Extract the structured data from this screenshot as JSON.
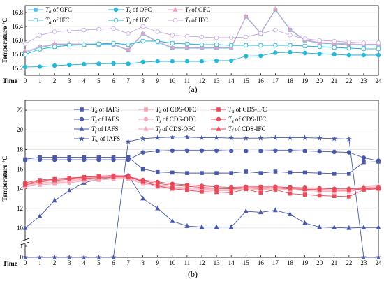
{
  "figure": {
    "panels": [
      {
        "id": "a",
        "label": "(a)",
        "type": "line",
        "xlabel": "Time",
        "ylabel": "Temperature ºC",
        "x": [
          0,
          1,
          2,
          3,
          4,
          5,
          6,
          7,
          8,
          9,
          10,
          11,
          12,
          13,
          14,
          15,
          16,
          17,
          18,
          19,
          20,
          21,
          22,
          23,
          24
        ],
        "xlim": [
          0,
          24
        ],
        "ylim": [
          15.0,
          17.0
        ],
        "yticks": [
          15.2,
          15.6,
          16.0,
          16.4,
          16.8
        ],
        "series": [
          {
            "key": "ta_ofc",
            "name_sub": "a",
            "name_suffix": " of OFC",
            "marker": "square",
            "fill": true,
            "color": "#5bc0eb",
            "values": [
              15.65,
              15.8,
              15.88,
              15.88,
              15.88,
              15.88,
              15.88,
              15.72,
              16.18,
              15.95,
              15.78,
              15.78,
              15.78,
              15.78,
              15.78,
              16.68,
              16.2,
              16.88,
              16.3,
              16.0,
              15.92,
              15.9,
              15.88,
              15.87,
              15.87
            ]
          },
          {
            "key": "ts_ofc",
            "name_sub": "s",
            "name_suffix": " of OFC",
            "marker": "circle",
            "fill": true,
            "color": "#2bb8d4",
            "values": [
              15.24,
              15.25,
              15.28,
              15.3,
              15.32,
              15.33,
              15.34,
              15.33,
              15.38,
              15.4,
              15.4,
              15.4,
              15.4,
              15.42,
              15.42,
              15.55,
              15.56,
              15.65,
              15.66,
              15.64,
              15.62,
              15.6,
              15.58,
              15.58,
              15.58
            ]
          },
          {
            "key": "tf_ofc",
            "name_sub": "f",
            "name_suffix": " of OFC",
            "marker": "triangle",
            "fill": true,
            "color": "#e8a0c0",
            "values": [
              15.68,
              15.82,
              15.9,
              15.9,
              15.9,
              15.9,
              15.9,
              15.74,
              16.2,
              15.97,
              15.8,
              15.8,
              15.8,
              15.8,
              15.8,
              16.7,
              16.22,
              16.9,
              16.32,
              16.02,
              15.94,
              15.92,
              15.9,
              15.89,
              15.89
            ]
          },
          {
            "key": "ta_ifc",
            "name_sub": "a",
            "name_suffix": " of IFC",
            "marker": "square",
            "fill": false,
            "color": "#5bc0eb",
            "values": [
              15.6,
              15.75,
              15.82,
              15.86,
              15.88,
              15.9,
              15.92,
              15.88,
              15.98,
              15.98,
              15.92,
              15.9,
              15.88,
              15.88,
              15.86,
              15.86,
              15.86,
              15.86,
              15.86,
              15.84,
              15.82,
              15.8,
              15.78,
              15.76,
              15.76
            ]
          },
          {
            "key": "ts_ifc",
            "name_sub": "s",
            "name_suffix": " of IFC",
            "marker": "circle",
            "fill": false,
            "color": "#2bb8d4",
            "values": [
              15.6,
              15.75,
              15.82,
              15.86,
              15.88,
              15.9,
              15.92,
              15.88,
              15.98,
              15.98,
              15.92,
              15.9,
              15.88,
              15.88,
              15.86,
              15.86,
              15.86,
              15.86,
              15.86,
              15.84,
              15.82,
              15.8,
              15.78,
              15.76,
              15.76
            ]
          },
          {
            "key": "tf_ifc",
            "name_sub": "f",
            "name_suffix": " of IFC",
            "marker": "circle",
            "fill": false,
            "color": "#c8a8e0",
            "values": [
              15.9,
              16.15,
              16.25,
              16.28,
              16.3,
              16.32,
              16.34,
              16.2,
              16.4,
              16.25,
              16.15,
              16.12,
              16.1,
              16.08,
              16.08,
              16.1,
              16.2,
              16.3,
              16.15,
              16.05,
              16.0,
              15.98,
              15.95,
              15.93,
              15.93
            ]
          }
        ]
      },
      {
        "id": "b",
        "label": "(b)",
        "type": "line",
        "xlabel": "Time",
        "ylabel": "Temperature ºC",
        "x": [
          0,
          1,
          2,
          3,
          4,
          5,
          6,
          7,
          8,
          9,
          10,
          11,
          12,
          13,
          14,
          15,
          16,
          17,
          18,
          19,
          20,
          21,
          22,
          23,
          24
        ],
        "xlim": [
          0,
          24
        ],
        "ylim": [
          0,
          23
        ],
        "axis_break": [
          1,
          9
        ],
        "yticks": [
          0,
          1,
          10,
          12,
          14,
          16,
          18,
          20,
          22
        ],
        "series": [
          {
            "key": "ta_iafs",
            "name_sub": "a",
            "name_suffix": " of IAFS",
            "marker": "square",
            "fill": true,
            "color": "#4a5aa8",
            "values": [
              17.0,
              17.2,
              17.2,
              17.2,
              17.2,
              17.2,
              17.2,
              17.2,
              16.0,
              15.7,
              15.65,
              15.6,
              15.6,
              15.6,
              15.6,
              15.75,
              15.6,
              15.75,
              15.65,
              15.65,
              15.6,
              15.55,
              15.55,
              16.7,
              16.75
            ]
          },
          {
            "key": "ts_iafs",
            "name_sub": "s",
            "name_suffix": " of IAFS",
            "marker": "circle",
            "fill": true,
            "color": "#4a5aa8",
            "values": [
              16.9,
              16.95,
              16.95,
              16.95,
              16.95,
              16.95,
              16.95,
              16.95,
              17.7,
              17.85,
              17.9,
              17.9,
              17.9,
              17.9,
              17.85,
              17.85,
              17.85,
              17.9,
              17.9,
              17.85,
              17.8,
              17.75,
              17.7,
              17.15,
              16.85
            ]
          },
          {
            "key": "tf_iafs",
            "name_sub": "f",
            "name_suffix": " of IAFS",
            "marker": "triangle",
            "fill": true,
            "color": "#4a5aa8",
            "values": [
              10.0,
              11.2,
              12.8,
              13.8,
              14.6,
              15.0,
              15.2,
              15.4,
              13.0,
              12.0,
              10.7,
              10.2,
              10.1,
              10.1,
              10.1,
              11.7,
              11.6,
              11.8,
              11.4,
              10.5,
              10.1,
              10.05,
              10.0,
              10.05,
              10.05
            ]
          },
          {
            "key": "tw_iafs",
            "name_sub": "w",
            "name_suffix": " of IAFS",
            "marker": "star",
            "fill": true,
            "color": "#4a5aa8",
            "values": [
              0,
              0,
              0,
              0,
              0,
              0,
              0,
              18.8,
              19.1,
              19.2,
              19.25,
              19.25,
              19.2,
              19.2,
              19.15,
              19.15,
              19.15,
              19.2,
              19.2,
              19.2,
              19.15,
              19.1,
              19.05,
              0,
              0
            ]
          },
          {
            "key": "ta_cds_ofc",
            "name_sub": "a",
            "name_suffix": " of CDS-OFC",
            "marker": "square",
            "fill": true,
            "color": "#f4a8b8",
            "values": [
              14.2,
              14.4,
              14.5,
              14.6,
              14.8,
              14.9,
              15.0,
              15.0,
              14.5,
              14.2,
              14.0,
              13.9,
              13.85,
              13.8,
              13.8,
              14.0,
              13.9,
              14.0,
              13.9,
              13.8,
              13.75,
              13.7,
              13.7,
              14.0,
              14.1
            ]
          },
          {
            "key": "ts_cds_ofc",
            "name_sub": "s",
            "name_suffix": " of CDS-OFC",
            "marker": "circle",
            "fill": true,
            "color": "#f4a8b8",
            "values": [
              14.3,
              14.5,
              14.6,
              14.7,
              14.9,
              15.0,
              15.1,
              15.1,
              14.6,
              14.3,
              14.1,
              14.0,
              13.95,
              13.9,
              13.9,
              14.1,
              14.0,
              14.1,
              14.0,
              13.9,
              13.85,
              13.8,
              13.8,
              14.1,
              14.2
            ]
          },
          {
            "key": "tf_cds_ofc",
            "name_sub": "f",
            "name_suffix": " of CDS-OFC",
            "marker": "triangle",
            "fill": true,
            "color": "#f4a8b8",
            "values": [
              14.4,
              14.6,
              14.7,
              14.8,
              15.0,
              15.1,
              15.2,
              15.2,
              14.7,
              14.4,
              14.2,
              14.1,
              14.05,
              14.0,
              14.0,
              14.2,
              14.1,
              14.2,
              14.1,
              14.0,
              13.95,
              13.9,
              13.9,
              14.2,
              14.3
            ]
          },
          {
            "key": "ta_cds_ifc",
            "name_sub": "a",
            "name_suffix": " of CDS-IFC",
            "marker": "square",
            "fill": true,
            "color": "#e84a5a",
            "values": [
              14.6,
              14.9,
              15.0,
              15.1,
              15.2,
              15.3,
              15.35,
              15.3,
              14.7,
              14.3,
              14.0,
              13.85,
              13.7,
              13.65,
              13.6,
              13.95,
              13.6,
              13.9,
              13.5,
              13.4,
              13.3,
              13.25,
              13.2,
              13.9,
              14.0
            ]
          },
          {
            "key": "ts_cds_ifc",
            "name_sub": "s",
            "name_suffix": " of CDS-IFC",
            "marker": "circle",
            "fill": true,
            "color": "#e84a5a",
            "values": [
              14.5,
              14.8,
              14.95,
              15.05,
              15.15,
              15.25,
              15.3,
              15.25,
              14.9,
              14.7,
              14.5,
              14.4,
              14.3,
              14.2,
              14.15,
              14.2,
              14.2,
              14.2,
              14.15,
              14.1,
              14.05,
              14.0,
              14.0,
              14.05,
              14.1
            ]
          },
          {
            "key": "tf_cds_ifc",
            "name_sub": "f",
            "name_suffix": " of CDS-IFC",
            "marker": "triangle",
            "fill": true,
            "color": "#e84a5a",
            "values": [
              14.4,
              14.7,
              14.85,
              14.95,
              15.05,
              15.15,
              15.2,
              15.2,
              14.8,
              14.55,
              14.35,
              14.25,
              14.15,
              14.05,
              14.0,
              14.1,
              14.05,
              14.1,
              14.0,
              13.95,
              13.9,
              13.85,
              13.85,
              14.0,
              14.05
            ]
          }
        ]
      }
    ]
  }
}
